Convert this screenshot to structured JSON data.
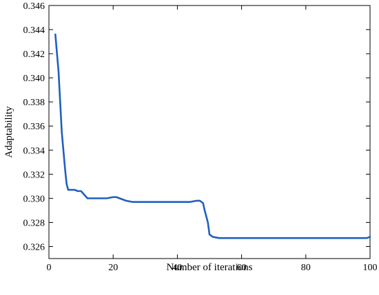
{
  "chart_data": {
    "type": "line",
    "title": "",
    "xlabel": "Number of iterations",
    "ylabel": "Adaptability",
    "xlim": [
      0,
      100
    ],
    "ylim": [
      0.325,
      0.346
    ],
    "xticks": [
      0,
      20,
      40,
      60,
      80,
      100
    ],
    "yticks": [
      0.326,
      0.328,
      0.33,
      0.332,
      0.334,
      0.336,
      0.338,
      0.34,
      0.342,
      0.344,
      0.346
    ],
    "xtick_labels": [
      "0",
      "20",
      "40",
      "60",
      "80",
      "100"
    ],
    "ytick_labels": [
      "0.326",
      "0.328",
      "0.330",
      "0.332",
      "0.334",
      "0.336",
      "0.338",
      "0.340",
      "0.342",
      "0.344",
      "0.346"
    ],
    "grid": false,
    "legend": "none",
    "series": [
      {
        "color": "#1f5fbf",
        "x": [
          2,
          3,
          3.5,
          4,
          4.5,
          5,
          5.5,
          6,
          7,
          8,
          9,
          10,
          12,
          15,
          18,
          20,
          21,
          22,
          23,
          24,
          26,
          30,
          35,
          40,
          44,
          46,
          47,
          48,
          48.5,
          49,
          49.5,
          50,
          51,
          53,
          60,
          70,
          80,
          90,
          99,
          100
        ],
        "y": [
          0.3436,
          0.3405,
          0.338,
          0.3355,
          0.334,
          0.3325,
          0.3312,
          0.3307,
          0.3307,
          0.3307,
          0.3306,
          0.3306,
          0.33,
          0.33,
          0.33,
          0.3301,
          0.3301,
          0.33,
          0.3299,
          0.3298,
          0.3297,
          0.3297,
          0.3297,
          0.3297,
          0.3297,
          0.3298,
          0.3298,
          0.3296,
          0.329,
          0.3285,
          0.328,
          0.327,
          0.3268,
          0.3267,
          0.3267,
          0.3267,
          0.3267,
          0.3267,
          0.3267,
          0.3268
        ]
      }
    ]
  }
}
